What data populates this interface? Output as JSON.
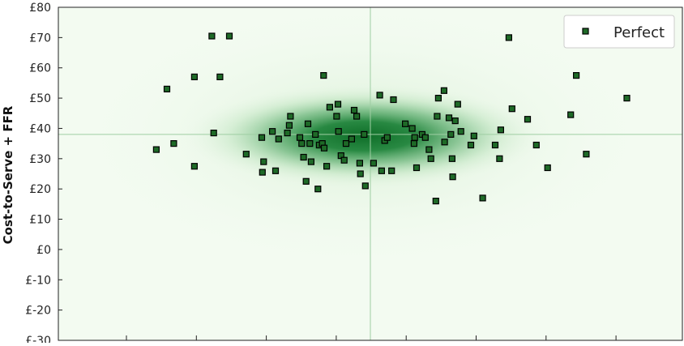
{
  "chart_data": {
    "type": "scatter",
    "title": "",
    "xlabel": "",
    "ylabel": "Cost-to-Serve + FFR",
    "ylim": [
      -30,
      80
    ],
    "y_ticks": [
      80,
      70,
      60,
      50,
      40,
      30,
      20,
      10,
      0,
      -10,
      -20,
      -30
    ],
    "y_tick_labels": [
      "£80",
      "£70",
      "£60",
      "£50",
      "£40",
      "£30",
      "£20",
      "£10",
      "£0",
      "£-10",
      "£-20",
      "£-30"
    ],
    "x_tick_count": 9,
    "x_tick_labels": [],
    "reference_lines": {
      "x": 0.5,
      "y": 38
    },
    "grid": false,
    "legend": {
      "placement": "top-right"
    },
    "colors": {
      "density": "#0b6b25",
      "marker_fill": "#1e6a27",
      "marker_edge": "#000000",
      "reference_line": "#9fcea3",
      "frame": "#222222"
    },
    "series": [
      {
        "name": "Perfect",
        "marker": "square",
        "points": [
          {
            "x": 0.157,
            "y": 33
          },
          {
            "x": 0.174,
            "y": 53
          },
          {
            "x": 0.185,
            "y": 35
          },
          {
            "x": 0.218,
            "y": 57
          },
          {
            "x": 0.218,
            "y": 27.5
          },
          {
            "x": 0.246,
            "y": 70.5
          },
          {
            "x": 0.249,
            "y": 38.5
          },
          {
            "x": 0.259,
            "y": 57
          },
          {
            "x": 0.274,
            "y": 70.5
          },
          {
            "x": 0.301,
            "y": 31.5
          },
          {
            "x": 0.326,
            "y": 37
          },
          {
            "x": 0.329,
            "y": 29
          },
          {
            "x": 0.327,
            "y": 25.5
          },
          {
            "x": 0.343,
            "y": 39
          },
          {
            "x": 0.348,
            "y": 26
          },
          {
            "x": 0.353,
            "y": 36.5
          },
          {
            "x": 0.367,
            "y": 38.5
          },
          {
            "x": 0.37,
            "y": 41
          },
          {
            "x": 0.372,
            "y": 44
          },
          {
            "x": 0.387,
            "y": 37
          },
          {
            "x": 0.39,
            "y": 35
          },
          {
            "x": 0.393,
            "y": 30.5
          },
          {
            "x": 0.397,
            "y": 22.5
          },
          {
            "x": 0.4,
            "y": 41.5
          },
          {
            "x": 0.403,
            "y": 35
          },
          {
            "x": 0.405,
            "y": 29
          },
          {
            "x": 0.412,
            "y": 38
          },
          {
            "x": 0.416,
            "y": 20
          },
          {
            "x": 0.418,
            "y": 34.5
          },
          {
            "x": 0.423,
            "y": 35
          },
          {
            "x": 0.426,
            "y": 33.5
          },
          {
            "x": 0.425,
            "y": 57.5
          },
          {
            "x": 0.43,
            "y": 27.5
          },
          {
            "x": 0.435,
            "y": 47
          },
          {
            "x": 0.446,
            "y": 44
          },
          {
            "x": 0.448,
            "y": 48
          },
          {
            "x": 0.449,
            "y": 39
          },
          {
            "x": 0.453,
            "y": 31
          },
          {
            "x": 0.458,
            "y": 29.5
          },
          {
            "x": 0.461,
            "y": 35
          },
          {
            "x": 0.47,
            "y": 36.5
          },
          {
            "x": 0.474,
            "y": 46
          },
          {
            "x": 0.478,
            "y": 44
          },
          {
            "x": 0.483,
            "y": 28.5
          },
          {
            "x": 0.484,
            "y": 25
          },
          {
            "x": 0.49,
            "y": 38
          },
          {
            "x": 0.492,
            "y": 21
          },
          {
            "x": 0.505,
            "y": 28.5
          },
          {
            "x": 0.515,
            "y": 51
          },
          {
            "x": 0.518,
            "y": 26
          },
          {
            "x": 0.523,
            "y": 36
          },
          {
            "x": 0.527,
            "y": 37
          },
          {
            "x": 0.534,
            "y": 26
          },
          {
            "x": 0.537,
            "y": 49.5
          },
          {
            "x": 0.556,
            "y": 41.5
          },
          {
            "x": 0.567,
            "y": 40
          },
          {
            "x": 0.57,
            "y": 35
          },
          {
            "x": 0.571,
            "y": 37
          },
          {
            "x": 0.574,
            "y": 27
          },
          {
            "x": 0.583,
            "y": 38
          },
          {
            "x": 0.588,
            "y": 37
          },
          {
            "x": 0.594,
            "y": 33
          },
          {
            "x": 0.597,
            "y": 30
          },
          {
            "x": 0.605,
            "y": 16
          },
          {
            "x": 0.607,
            "y": 44
          },
          {
            "x": 0.609,
            "y": 50
          },
          {
            "x": 0.618,
            "y": 52.5
          },
          {
            "x": 0.619,
            "y": 35.5
          },
          {
            "x": 0.626,
            "y": 43.5
          },
          {
            "x": 0.629,
            "y": 38
          },
          {
            "x": 0.631,
            "y": 30
          },
          {
            "x": 0.632,
            "y": 24
          },
          {
            "x": 0.636,
            "y": 42.5
          },
          {
            "x": 0.64,
            "y": 48
          },
          {
            "x": 0.645,
            "y": 39
          },
          {
            "x": 0.661,
            "y": 34.5
          },
          {
            "x": 0.666,
            "y": 37.5
          },
          {
            "x": 0.68,
            "y": 17
          },
          {
            "x": 0.7,
            "y": 34.5
          },
          {
            "x": 0.707,
            "y": 30
          },
          {
            "x": 0.709,
            "y": 39.5
          },
          {
            "x": 0.722,
            "y": 70
          },
          {
            "x": 0.727,
            "y": 46.5
          },
          {
            "x": 0.752,
            "y": 43
          },
          {
            "x": 0.766,
            "y": 34.5
          },
          {
            "x": 0.784,
            "y": 27
          },
          {
            "x": 0.821,
            "y": 44.5
          },
          {
            "x": 0.83,
            "y": 57.5
          },
          {
            "x": 0.846,
            "y": 31.5
          },
          {
            "x": 0.911,
            "y": 50
          }
        ]
      }
    ]
  }
}
